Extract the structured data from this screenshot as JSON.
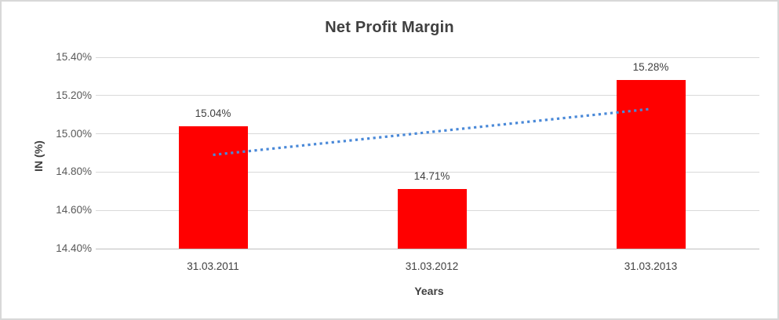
{
  "chart_data": {
    "type": "bar",
    "title": "Net Profit Margin",
    "xlabel": "Years",
    "ylabel": "IN (%)",
    "categories": [
      "31.03.2011",
      "31.03.2012",
      "31.03.2013"
    ],
    "values": [
      15.04,
      14.71,
      15.28
    ],
    "value_labels": [
      "15.04%",
      "14.71%",
      "15.28%"
    ],
    "ylim": [
      14.4,
      15.4
    ],
    "yticks": [
      14.4,
      14.6,
      14.8,
      15.0,
      15.2,
      15.4
    ],
    "ytick_labels": [
      "14.40%",
      "14.60%",
      "14.80%",
      "15.00%",
      "15.20%",
      "15.40%"
    ],
    "grid": true,
    "legend": "none",
    "trendline": {
      "type": "linear",
      "style": "dotted",
      "start_value": 14.89,
      "end_value": 15.13
    },
    "colors": {
      "bar": "#ff0000",
      "trendline": "#4a89d8",
      "gridline": "#d9d9d9",
      "axis_line": "#bfbfbf",
      "title_text": "#404040",
      "tick_text": "#595959",
      "frame_border": "#d8d8d8"
    }
  }
}
